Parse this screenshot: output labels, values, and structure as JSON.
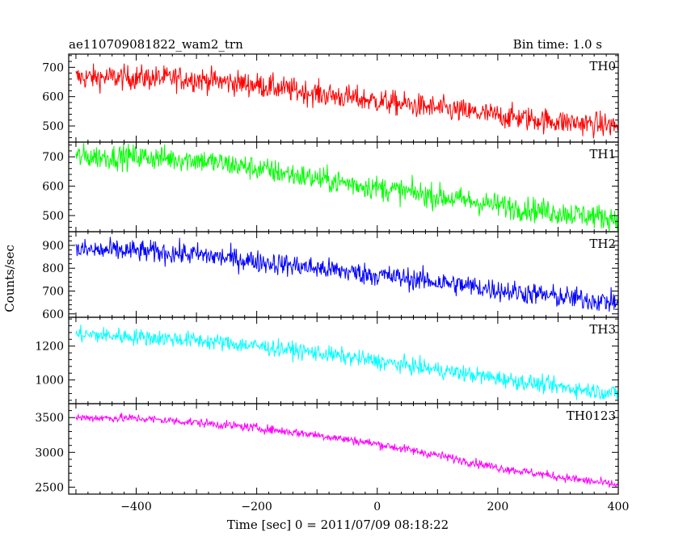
{
  "chart_data": {
    "type": "line",
    "title_left": "ae110709081822_wam2_trn",
    "title_right": "Bin time: 1.0 s",
    "xlabel": "Time [sec] 0 = 2011/07/09 08:18:22",
    "ylabel": "Counts/sec",
    "xlim": [
      -512,
      400
    ],
    "xticks": [
      -400,
      -200,
      0,
      200,
      400
    ],
    "grid": false,
    "series": [
      {
        "name": "TH0",
        "color": "#ff0000",
        "ylim": [
          445,
          745
        ],
        "yticks": [
          500,
          600,
          700
        ],
        "x": [
          -500,
          -400,
          -300,
          -200,
          -100,
          0,
          100,
          200,
          300,
          400
        ],
        "y": [
          665,
          665,
          660,
          640,
          610,
          585,
          560,
          535,
          515,
          500
        ],
        "noise": 30
      },
      {
        "name": "TH1",
        "color": "#00ff00",
        "ylim": [
          445,
          750
        ],
        "yticks": [
          500,
          600,
          700
        ],
        "x": [
          -500,
          -400,
          -300,
          -200,
          -100,
          0,
          100,
          200,
          300,
          400
        ],
        "y": [
          700,
          700,
          690,
          660,
          625,
          595,
          565,
          535,
          510,
          490
        ],
        "noise": 30
      },
      {
        "name": "TH2",
        "color": "#0000ff",
        "ylim": [
          585,
          960
        ],
        "yticks": [
          600,
          700,
          800,
          900
        ],
        "x": [
          -500,
          -400,
          -300,
          -200,
          -100,
          0,
          100,
          200,
          300,
          400
        ],
        "y": [
          880,
          875,
          860,
          830,
          800,
          770,
          740,
          705,
          675,
          650
        ],
        "noise": 35
      },
      {
        "name": "TH3",
        "color": "#00ffff",
        "ylim": [
          860,
          1370
        ],
        "yticks": [
          1000,
          1200
        ],
        "x": [
          -500,
          -400,
          -300,
          -200,
          -100,
          0,
          100,
          200,
          300,
          400
        ],
        "y": [
          1270,
          1255,
          1235,
          1200,
          1160,
          1110,
          1060,
          1010,
          960,
          920
        ],
        "noise": 35
      },
      {
        "name": "TH0123",
        "color": "#ff00ff",
        "ylim": [
          2400,
          3700
        ],
        "yticks": [
          2500,
          3000,
          3500
        ],
        "x": [
          -500,
          -400,
          -300,
          -200,
          -100,
          0,
          100,
          200,
          300,
          400
        ],
        "y": [
          3500,
          3490,
          3430,
          3350,
          3250,
          3120,
          2960,
          2780,
          2650,
          2530
        ],
        "noise": 45
      }
    ]
  }
}
